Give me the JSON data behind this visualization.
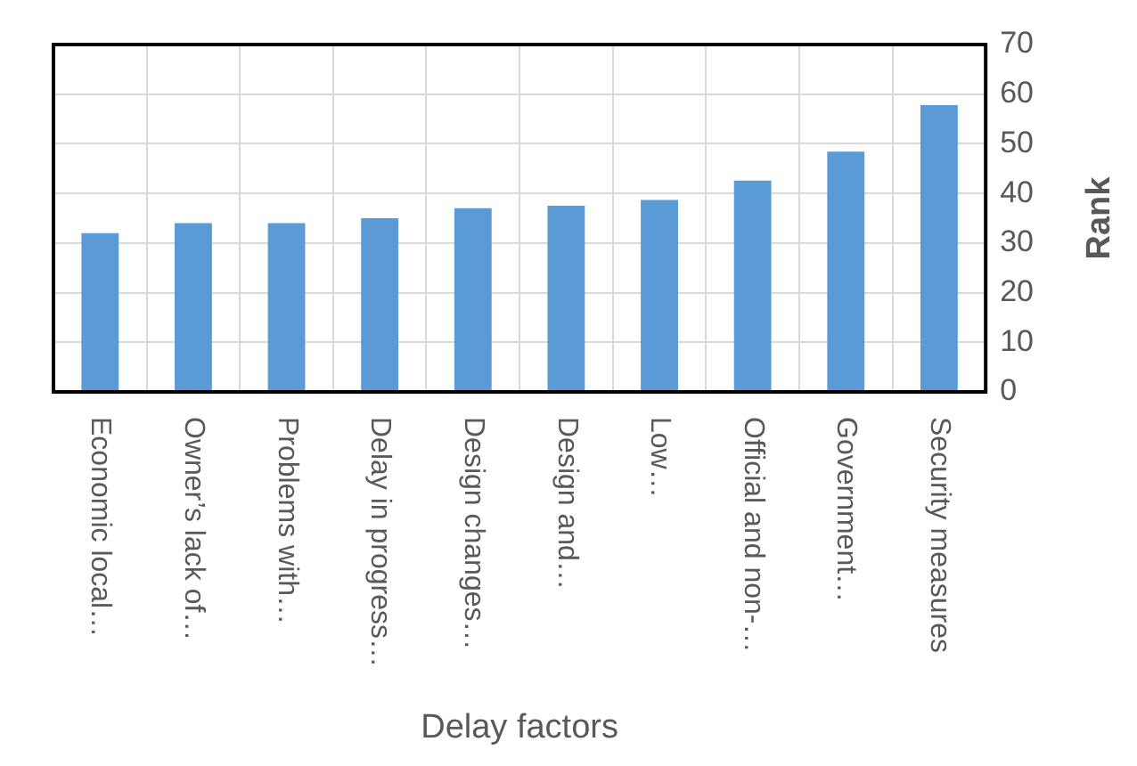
{
  "chart_data": {
    "type": "bar",
    "xlabel": "Delay factors",
    "ylabel": "Rank",
    "categories": [
      "Economic local…",
      "Owner’s lack of…",
      "Problems with…",
      "Delay in progress…",
      "Design changes…",
      "Design and…",
      "Low…",
      "Official and non-…",
      "Government…",
      "Security measures"
    ],
    "values": [
      32,
      34,
      34,
      35,
      37,
      37.5,
      38.7,
      42.6,
      48.4,
      57.8
    ],
    "color": "#5b9bd5",
    "ylim": [
      0,
      70
    ],
    "yticks": [
      0,
      10,
      20,
      30,
      40,
      50,
      60,
      70
    ],
    "grid": true,
    "legend": false
  }
}
